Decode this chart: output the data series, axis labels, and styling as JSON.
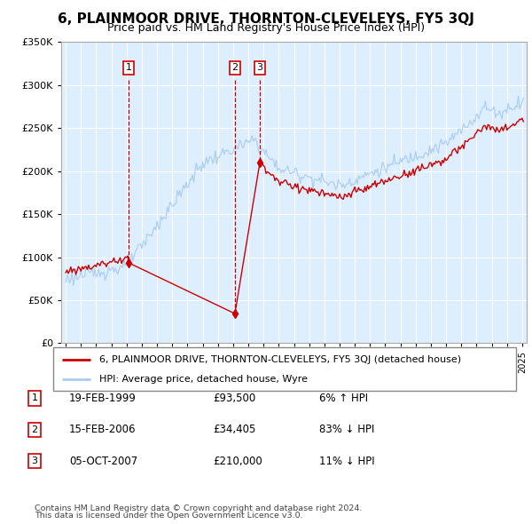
{
  "title": "6, PLAINMOOR DRIVE, THORNTON-CLEVELEYS, FY5 3QJ",
  "subtitle": "Price paid vs. HM Land Registry's House Price Index (HPI)",
  "ylim": [
    0,
    350000
  ],
  "yticks": [
    0,
    50000,
    100000,
    150000,
    200000,
    250000,
    300000,
    350000
  ],
  "sale_dates_num": [
    1999.12,
    2006.12,
    2007.76
  ],
  "sale_prices": [
    93500,
    34405,
    210000
  ],
  "sale_labels": [
    "1",
    "2",
    "3"
  ],
  "property_line_color": "#cc0000",
  "hpi_line_color": "#aaccee",
  "dashed_color": "#cc0000",
  "chart_bg": "#ddeeff",
  "legend_property": "6, PLAINMOOR DRIVE, THORNTON-CLEVELEYS, FY5 3QJ (detached house)",
  "legend_hpi": "HPI: Average price, detached house, Wyre",
  "table_rows": [
    {
      "num": "1",
      "date": "19-FEB-1999",
      "price": "£93,500",
      "hpi": "6% ↑ HPI"
    },
    {
      "num": "2",
      "date": "15-FEB-2006",
      "price": "£34,405",
      "hpi": "83% ↓ HPI"
    },
    {
      "num": "3",
      "date": "05-OCT-2007",
      "price": "£210,000",
      "hpi": "11% ↓ HPI"
    }
  ],
  "footnote1": "Contains HM Land Registry data © Crown copyright and database right 2024.",
  "footnote2": "This data is licensed under the Open Government Licence v3.0.",
  "grid_color": "#ffffff"
}
